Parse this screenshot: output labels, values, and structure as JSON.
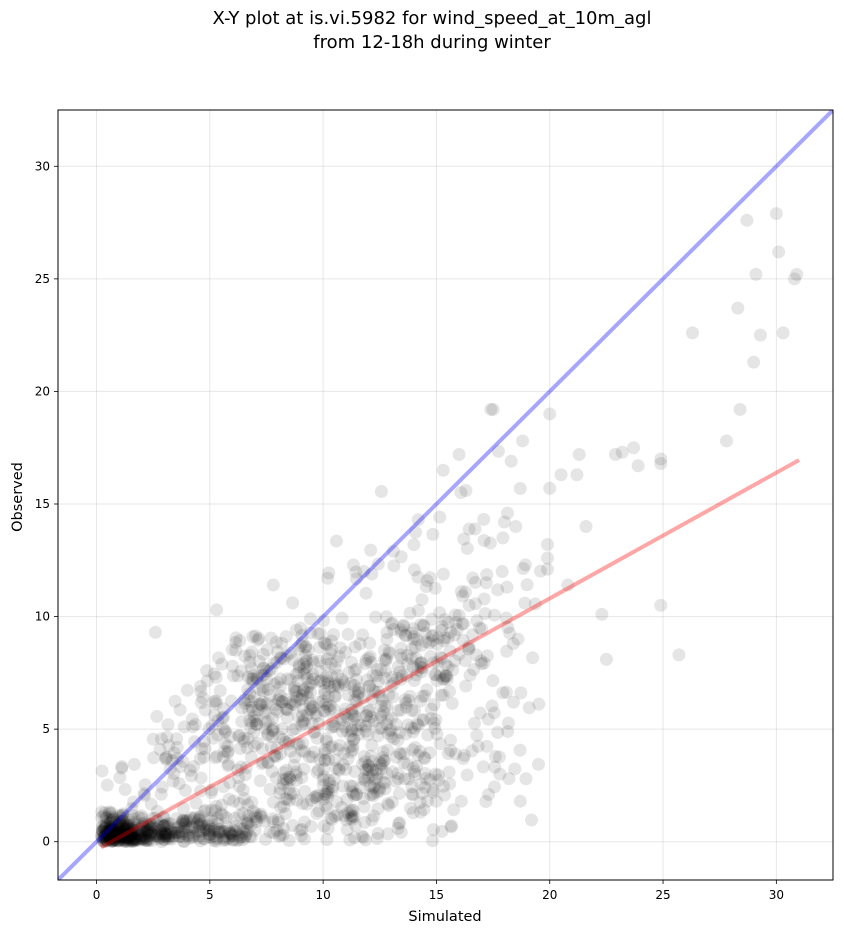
{
  "chart_data": {
    "type": "scatter",
    "title_lines": [
      "X-Y plot at is.vi.5982 for wind_speed_at_10m_agl",
      "from 12-18h during winter"
    ],
    "xlabel": "Simulated",
    "ylabel": "Observed",
    "xlim": [
      -1.7,
      32.5
    ],
    "ylim": [
      -1.7,
      32.5
    ],
    "xticks": [
      0,
      5,
      10,
      15,
      20,
      25,
      30
    ],
    "yticks": [
      0,
      5,
      10,
      15,
      20,
      25,
      30
    ],
    "grid": true,
    "point_color": "#000000",
    "point_alpha": 0.1,
    "identity_line": {
      "color": "#0000ff",
      "alpha": 0.35,
      "x": [
        -1.7,
        32.5
      ],
      "y": [
        -1.7,
        32.5
      ]
    },
    "fit_line": {
      "color": "#ff0000",
      "alpha": 0.35,
      "x": [
        0.2,
        31.0
      ],
      "y": [
        -0.25,
        16.95
      ]
    },
    "clusters": [
      {
        "cx": 1.0,
        "cy": 0.3,
        "sx": 0.6,
        "sy": 0.45,
        "n": 220
      },
      {
        "cx": 2.5,
        "cy": 0.4,
        "sx": 1.3,
        "sy": 0.35,
        "n": 160
      },
      {
        "cx": 5.5,
        "cy": 0.5,
        "sx": 1.5,
        "sy": 0.4,
        "n": 110
      },
      {
        "cx": 8.5,
        "cy": 6.8,
        "sx": 1.8,
        "sy": 1.4,
        "n": 170
      },
      {
        "cx": 11.0,
        "cy": 6.5,
        "sx": 2.0,
        "sy": 1.8,
        "n": 190
      },
      {
        "cx": 12.5,
        "cy": 3.0,
        "sx": 1.6,
        "sy": 1.6,
        "n": 150
      },
      {
        "cx": 9.5,
        "cy": 2.0,
        "sx": 2.2,
        "sy": 1.2,
        "n": 120
      },
      {
        "cx": 14.0,
        "cy": 8.5,
        "sx": 1.6,
        "sy": 2.2,
        "n": 120
      },
      {
        "cx": 6.5,
        "cy": 4.0,
        "sx": 2.0,
        "sy": 1.8,
        "n": 110
      },
      {
        "cx": 3.5,
        "cy": 2.5,
        "sx": 1.5,
        "sy": 1.5,
        "n": 60
      },
      {
        "cx": 16.5,
        "cy": 10.5,
        "sx": 1.5,
        "sy": 3.0,
        "n": 70
      },
      {
        "cx": 17.5,
        "cy": 4.5,
        "sx": 1.2,
        "sy": 2.0,
        "n": 30
      }
    ],
    "points": [
      [
        2.6,
        9.3
      ],
      [
        5.3,
        10.3
      ],
      [
        7.8,
        11.4
      ],
      [
        10.2,
        11.7
      ],
      [
        11.8,
        12.0
      ],
      [
        13.1,
        12.9
      ],
      [
        14.2,
        14.3
      ],
      [
        15.3,
        16.5
      ],
      [
        16.0,
        17.2
      ],
      [
        16.3,
        15.6
      ],
      [
        17.4,
        19.2
      ],
      [
        17.5,
        19.2
      ],
      [
        18.8,
        17.8
      ],
      [
        18.3,
        16.9
      ],
      [
        20.0,
        19.0
      ],
      [
        20.0,
        15.7
      ],
      [
        20.5,
        16.3
      ],
      [
        21.3,
        17.2
      ],
      [
        21.6,
        14.0
      ],
      [
        21.2,
        16.3
      ],
      [
        22.9,
        17.2
      ],
      [
        23.2,
        17.3
      ],
      [
        23.7,
        17.5
      ],
      [
        23.9,
        16.7
      ],
      [
        24.9,
        17.0
      ],
      [
        24.9,
        16.8
      ],
      [
        19.9,
        13.2
      ],
      [
        19.9,
        12.6
      ],
      [
        19.9,
        12.1
      ],
      [
        20.8,
        11.4
      ],
      [
        22.3,
        10.1
      ],
      [
        22.5,
        8.1
      ],
      [
        24.9,
        10.5
      ],
      [
        25.7,
        8.3
      ],
      [
        26.3,
        22.6
      ],
      [
        27.8,
        17.8
      ],
      [
        28.4,
        19.2
      ],
      [
        28.3,
        23.7
      ],
      [
        28.7,
        27.6
      ],
      [
        29.1,
        25.2
      ],
      [
        29.0,
        21.3
      ],
      [
        29.3,
        22.5
      ],
      [
        30.0,
        27.9
      ],
      [
        30.1,
        26.2
      ],
      [
        30.3,
        22.6
      ],
      [
        30.8,
        25.0
      ],
      [
        30.9,
        25.2
      ],
      [
        18.7,
        1.8
      ],
      [
        18.2,
        2.8
      ],
      [
        17.8,
        3.0
      ],
      [
        17.3,
        2.1
      ],
      [
        16.1,
        1.8
      ],
      [
        18.4,
        6.2
      ],
      [
        18.6,
        9.0
      ],
      [
        18.9,
        10.6
      ],
      [
        18.5,
        14.0
      ],
      [
        18.0,
        14.2
      ],
      [
        17.9,
        12.0
      ],
      [
        17.2,
        11.5
      ],
      [
        16.9,
        9.5
      ]
    ]
  }
}
